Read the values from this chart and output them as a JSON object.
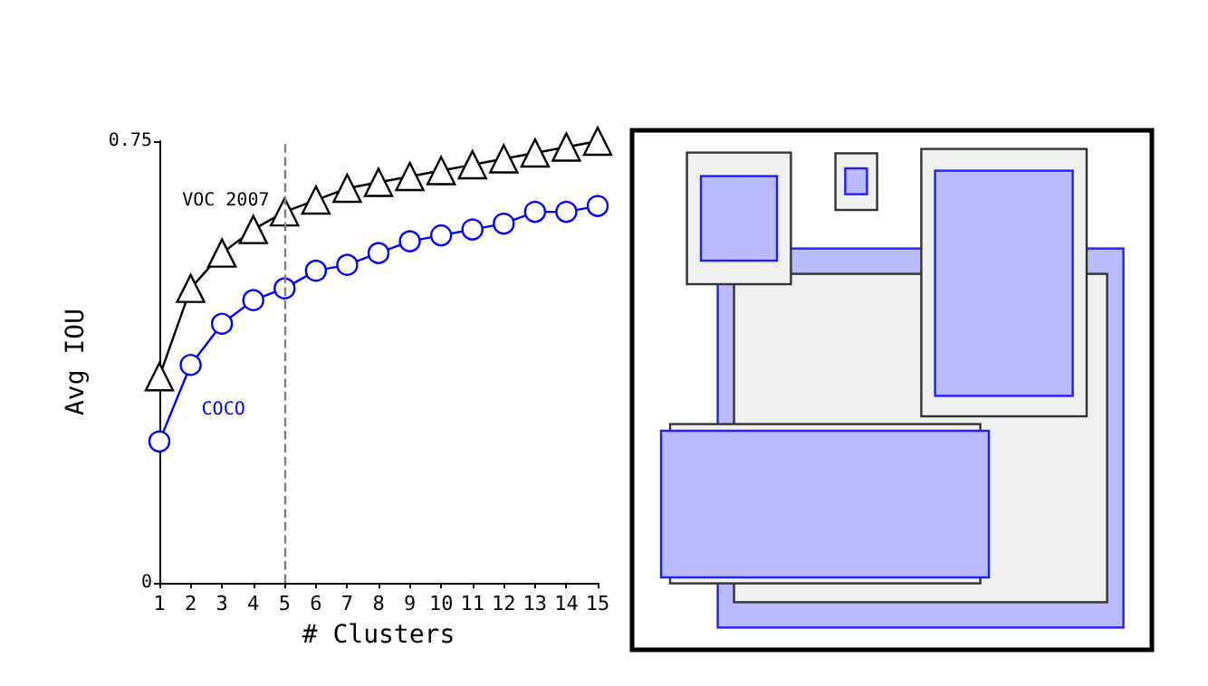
{
  "chart_data": {
    "type": "line",
    "xlabel": "# Clusters",
    "ylabel": "Avg IOU",
    "x": [
      1,
      2,
      3,
      4,
      5,
      6,
      7,
      8,
      9,
      10,
      11,
      12,
      13,
      14,
      15
    ],
    "series": [
      {
        "name": "VOC 2007",
        "color": "#000000",
        "marker": "triangle",
        "values": [
          0.35,
          0.5,
          0.56,
          0.6,
          0.63,
          0.65,
          0.67,
          0.68,
          0.69,
          0.7,
          0.71,
          0.72,
          0.73,
          0.74,
          0.75
        ]
      },
      {
        "name": "COCO",
        "color": "#0000ff",
        "marker": "circle",
        "values": [
          0.24,
          0.37,
          0.44,
          0.48,
          0.5,
          0.53,
          0.54,
          0.56,
          0.58,
          0.59,
          0.6,
          0.61,
          0.63,
          0.63,
          0.64
        ]
      }
    ],
    "xlim": [
      1,
      15
    ],
    "xticks": [
      1,
      2,
      3,
      4,
      5,
      6,
      7,
      8,
      9,
      10,
      11,
      12,
      13,
      14,
      15
    ],
    "ylim": [
      0,
      0.75
    ],
    "yticks": [
      0,
      0.75
    ],
    "ref_lines": [
      {
        "axis": "x",
        "value": 5,
        "color": "#808080",
        "line_style": "dashed"
      }
    ],
    "grid": false,
    "legend": false
  }
}
